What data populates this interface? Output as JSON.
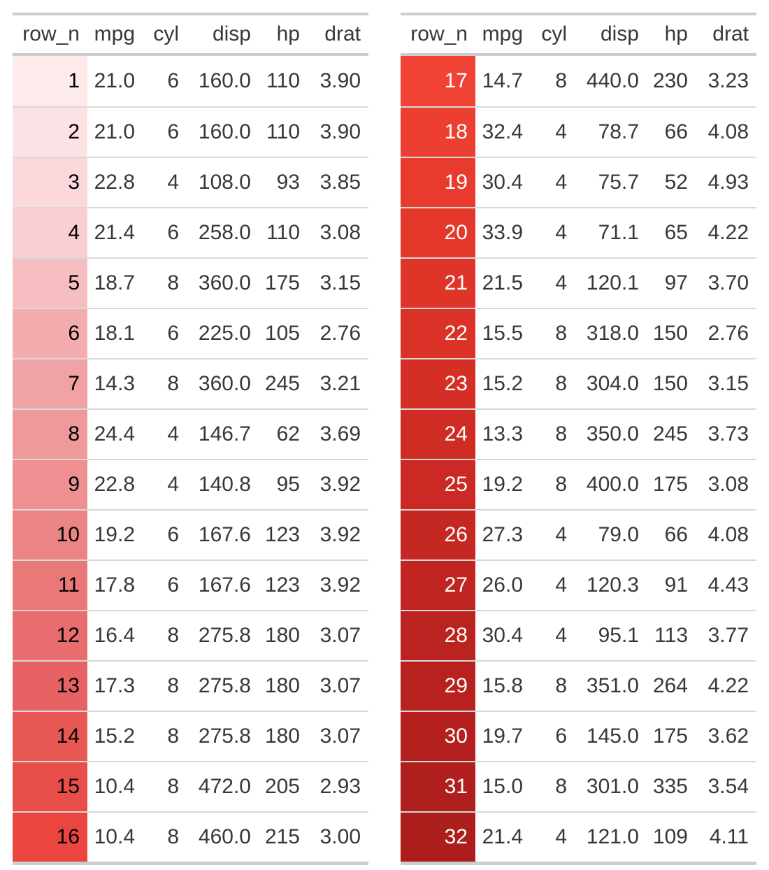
{
  "layout": {
    "table_count": 2,
    "rows_per_table": 16,
    "note_colors": {
      "table_border": "#cecece",
      "header_border": "#cbcbcb",
      "row_separator": "#d9d9d9",
      "body_text": "#383838",
      "background": "#ffffff"
    }
  },
  "chart_data": {
    "type": "table",
    "title": "",
    "columns": [
      "row_n",
      "mpg",
      "cyl",
      "disp",
      "hp",
      "drat"
    ],
    "split": "rows 1-16 shown in left table, rows 17-32 shown in right table",
    "rows": [
      [
        "1",
        "21.0",
        "6",
        "160.0",
        "110",
        "3.90"
      ],
      [
        "2",
        "21.0",
        "6",
        "160.0",
        "110",
        "3.90"
      ],
      [
        "3",
        "22.8",
        "4",
        "108.0",
        "93",
        "3.85"
      ],
      [
        "4",
        "21.4",
        "6",
        "258.0",
        "110",
        "3.08"
      ],
      [
        "5",
        "18.7",
        "8",
        "360.0",
        "175",
        "3.15"
      ],
      [
        "6",
        "18.1",
        "6",
        "225.0",
        "105",
        "2.76"
      ],
      [
        "7",
        "14.3",
        "8",
        "360.0",
        "245",
        "3.21"
      ],
      [
        "8",
        "24.4",
        "4",
        "146.7",
        "62",
        "3.69"
      ],
      [
        "9",
        "22.8",
        "4",
        "140.8",
        "95",
        "3.92"
      ],
      [
        "10",
        "19.2",
        "6",
        "167.6",
        "123",
        "3.92"
      ],
      [
        "11",
        "17.8",
        "6",
        "167.6",
        "123",
        "3.92"
      ],
      [
        "12",
        "16.4",
        "8",
        "275.8",
        "180",
        "3.07"
      ],
      [
        "13",
        "17.3",
        "8",
        "275.8",
        "180",
        "3.07"
      ],
      [
        "14",
        "15.2",
        "8",
        "275.8",
        "180",
        "3.07"
      ],
      [
        "15",
        "10.4",
        "8",
        "472.0",
        "205",
        "2.93"
      ],
      [
        "16",
        "10.4",
        "8",
        "460.0",
        "215",
        "3.00"
      ],
      [
        "17",
        "14.7",
        "8",
        "440.0",
        "230",
        "3.23"
      ],
      [
        "18",
        "32.4",
        "4",
        "78.7",
        "66",
        "4.08"
      ],
      [
        "19",
        "30.4",
        "4",
        "75.7",
        "52",
        "4.93"
      ],
      [
        "20",
        "33.9",
        "4",
        "71.1",
        "65",
        "4.22"
      ],
      [
        "21",
        "21.5",
        "4",
        "120.1",
        "97",
        "3.70"
      ],
      [
        "22",
        "15.5",
        "8",
        "318.0",
        "150",
        "2.76"
      ],
      [
        "23",
        "15.2",
        "8",
        "304.0",
        "150",
        "3.15"
      ],
      [
        "24",
        "13.3",
        "8",
        "350.0",
        "245",
        "3.73"
      ],
      [
        "25",
        "19.2",
        "8",
        "400.0",
        "175",
        "3.08"
      ],
      [
        "26",
        "27.3",
        "4",
        "79.0",
        "66",
        "4.08"
      ],
      [
        "27",
        "26.0",
        "4",
        "120.3",
        "91",
        "4.43"
      ],
      [
        "28",
        "30.4",
        "4",
        "95.1",
        "113",
        "3.77"
      ],
      [
        "29",
        "15.8",
        "8",
        "351.0",
        "264",
        "4.22"
      ],
      [
        "30",
        "19.7",
        "6",
        "145.0",
        "175",
        "3.62"
      ],
      [
        "31",
        "15.0",
        "8",
        "301.0",
        "335",
        "3.54"
      ],
      [
        "32",
        "21.4",
        "4",
        "121.0",
        "109",
        "4.11"
      ]
    ],
    "row_n_cell_colors": [
      "#FDEBEC",
      "#FCE2E4",
      "#FBD8DB",
      "#FACED2",
      "#F7BEC1",
      "#F4ADAF",
      "#F1A2A4",
      "#F0999B",
      "#EE9092",
      "#EB8485",
      "#E97879",
      "#E76D6E",
      "#E66263",
      "#E75853",
      "#E84E49",
      "#EA463F",
      "#F04336",
      "#EC3F31",
      "#E83B2E",
      "#E4382B",
      "#DF3529",
      "#DA3227",
      "#D52F25",
      "#CF2C24",
      "#CA2A23",
      "#C52822",
      "#C02521",
      "#BB2320",
      "#B7211F",
      "#B3201E",
      "#AF1F1D",
      "#AB1E1C"
    ],
    "row_n_text_colors": [
      "#000000",
      "#000000",
      "#000000",
      "#000000",
      "#000000",
      "#000000",
      "#000000",
      "#000000",
      "#000000",
      "#000000",
      "#000000",
      "#000000",
      "#000000",
      "#000000",
      "#000000",
      "#000000",
      "#ffffff",
      "#ffffff",
      "#ffffff",
      "#ffffff",
      "#ffffff",
      "#ffffff",
      "#ffffff",
      "#ffffff",
      "#ffffff",
      "#ffffff",
      "#ffffff",
      "#ffffff",
      "#ffffff",
      "#ffffff",
      "#ffffff",
      "#ffffff"
    ]
  }
}
